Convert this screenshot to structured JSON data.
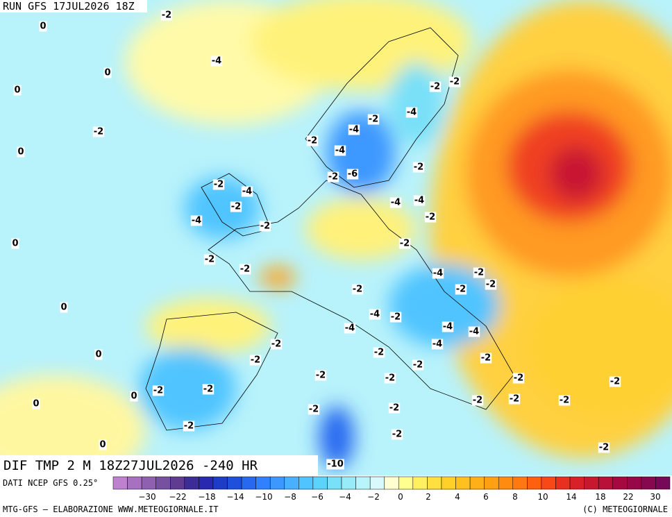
{
  "header": {
    "run": "RUN GFS 17JUL2026 18Z",
    "field": "DIF TMP 2 M 18Z27JUL2026 -240 HR"
  },
  "contour_labels": [
    "0",
    "-2",
    "0",
    "0",
    "-2",
    "0",
    "-4",
    "0",
    "0",
    "0",
    "0",
    "0",
    "0",
    "-2",
    "-2",
    "-4",
    "-2",
    "-4",
    "-2",
    "-4",
    "-6",
    "-2",
    "-2",
    "-4",
    "-4",
    "-2",
    "-2",
    "-4",
    "-2",
    "-4",
    "-2",
    "-2",
    "-2",
    "-2",
    "-4",
    "-2",
    "-2",
    "-2",
    "-2",
    "-4",
    "-2",
    "-4",
    "-4",
    "-4",
    "-4",
    "-2",
    "-2",
    "-2",
    "-2",
    "-2",
    "-2",
    "-2",
    "-2",
    "-2",
    "-2",
    "-2",
    "-2",
    "-2",
    "-2",
    "-2",
    "-2",
    "-2",
    "-2",
    "-2",
    "-10"
  ],
  "colorbar": {
    "colors": [
      "#c080d0",
      "#a870c0",
      "#9060b0",
      "#7850a0",
      "#603c90",
      "#3c2c98",
      "#2828b0",
      "#1e3cc8",
      "#1e50dc",
      "#2868f0",
      "#3080ff",
      "#3c98ff",
      "#48b0ff",
      "#50c4ff",
      "#5ad4f8",
      "#78e0f8",
      "#98ecfa",
      "#b8f4fc",
      "#d8fafc",
      "#ffffd0",
      "#ffff90",
      "#fff060",
      "#ffe040",
      "#ffd028",
      "#ffc020",
      "#ffb018",
      "#ffa010",
      "#ff8c10",
      "#ff7810",
      "#ff6010",
      "#f84818",
      "#e83020",
      "#d82028",
      "#c81830",
      "#b81038",
      "#a80840",
      "#980848",
      "#880850",
      "#780858"
    ],
    "labels": [
      "−30",
      "−22",
      "−18",
      "−14",
      "−10",
      "−8",
      "−6",
      "−4",
      "−2",
      "0",
      "2",
      "4",
      "6",
      "8",
      "10",
      "14",
      "18",
      "22",
      "30"
    ]
  },
  "footer": {
    "source": "DATI NCEP GFS 0.25°",
    "credit": "MTG-GFS — ELABORAZIONE WWW.METEOGIORNALE.IT",
    "copyright": "(C) METEOGIORNALE"
  }
}
